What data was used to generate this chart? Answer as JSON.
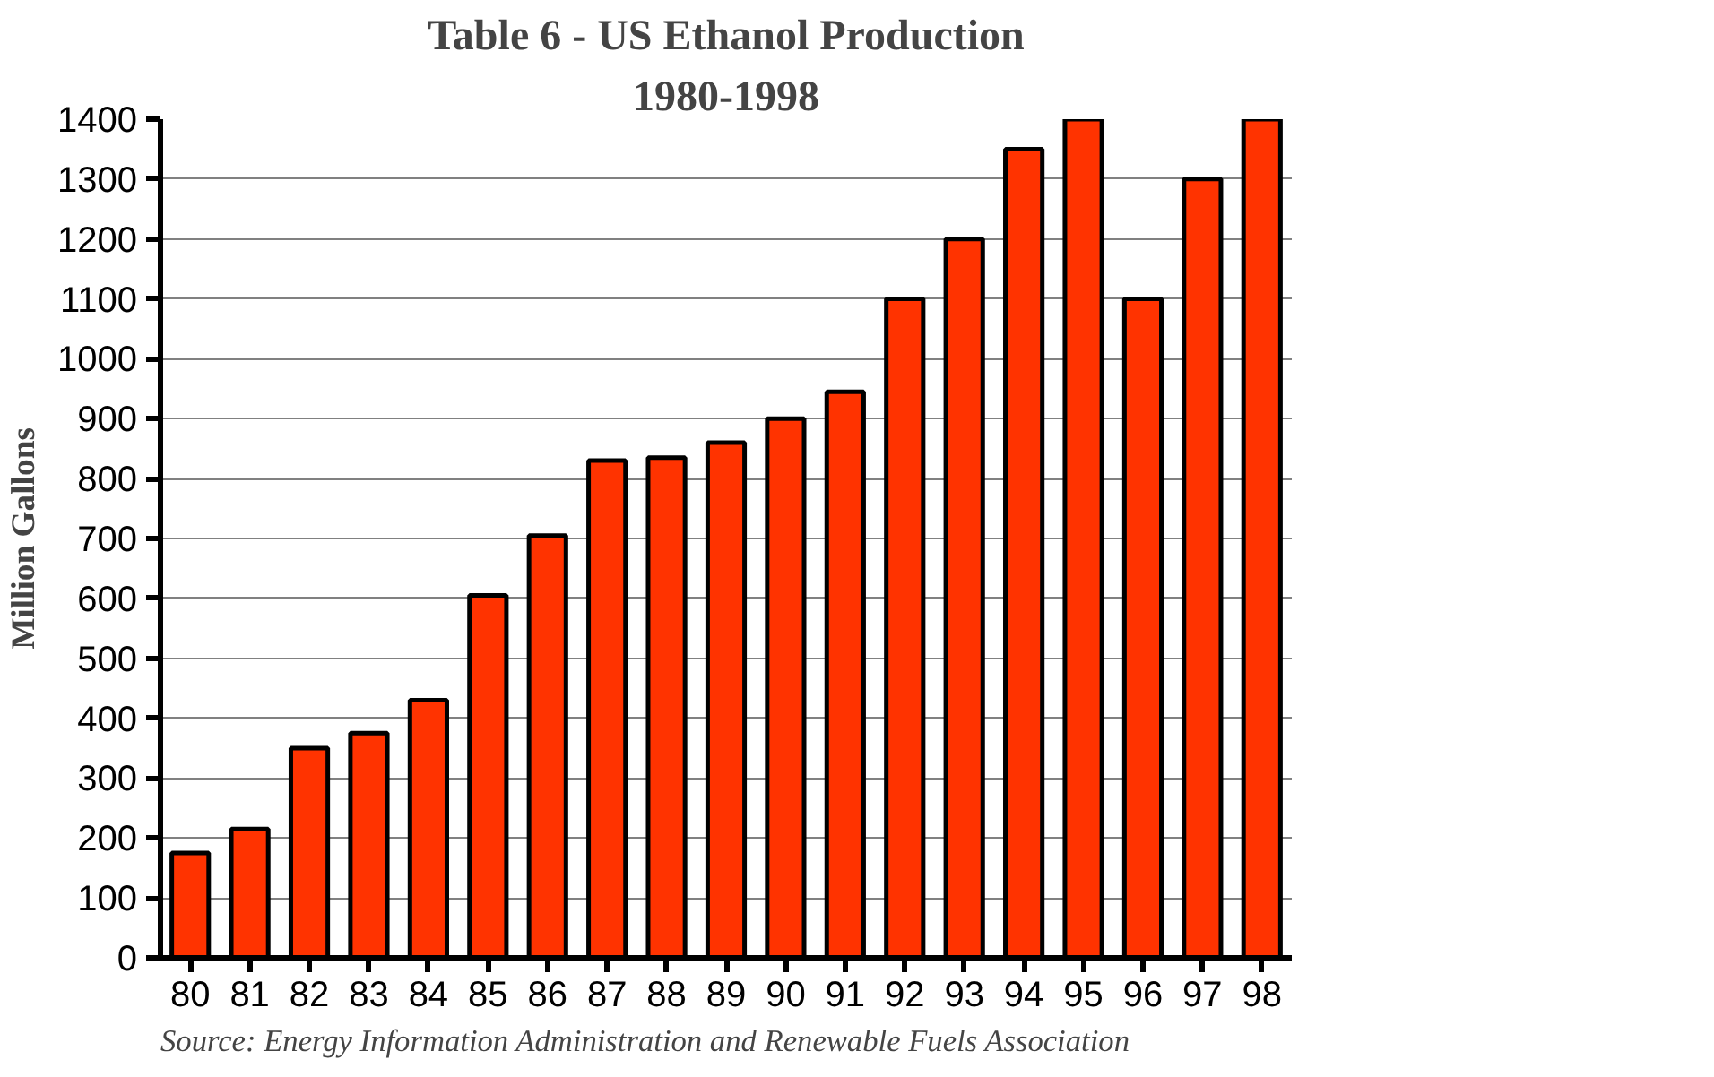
{
  "chart_data": {
    "type": "bar",
    "title": "Table 6 - US Ethanol Production",
    "subtitle": "1980-1998",
    "ylabel": "Million Gallons",
    "categories": [
      "80",
      "81",
      "82",
      "83",
      "84",
      "85",
      "86",
      "87",
      "88",
      "89",
      "90",
      "91",
      "92",
      "93",
      "94",
      "95",
      "96",
      "97",
      "98"
    ],
    "values": [
      175,
      215,
      350,
      375,
      430,
      605,
      705,
      830,
      835,
      860,
      900,
      945,
      1100,
      1200,
      1350,
      1400,
      1100,
      1300,
      1400
    ],
    "color": "#ff3300",
    "ylim": [
      0,
      1400
    ],
    "yticks": [
      0,
      100,
      200,
      300,
      400,
      500,
      600,
      700,
      800,
      900,
      1000,
      1100,
      1200,
      1300,
      1400
    ],
    "grid": "y",
    "annotations": [
      "Source:  Energy Information Administration and Renewable Fuels Association"
    ]
  }
}
